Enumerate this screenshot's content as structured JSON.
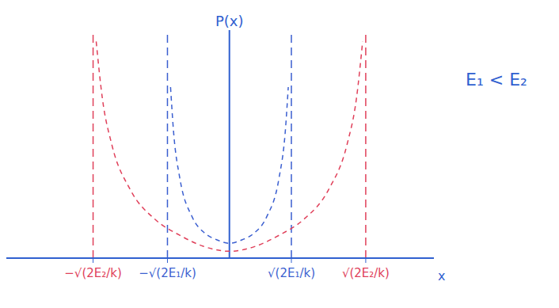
{
  "chart_data": {
    "type": "line",
    "y_label": "P(x)",
    "x_label": "x",
    "annotation": "E₁ < E₂",
    "tick_labels": "x",
    "xlim": [
      -3.6,
      3.3
    ],
    "ylim": [
      0,
      1
    ],
    "xticks": [
      {
        "value": -2.2,
        "label": "−√(2E₂/k)"
      },
      {
        "value": -1,
        "label": "−√(2E₁/k)"
      },
      {
        "value": 1,
        "label": "√(2E₁/k)"
      },
      {
        "value": 2.2,
        "label": "√(2E₂/k)"
      }
    ],
    "series": [
      {
        "color": "#3b5fd0",
        "line_style": "dashed",
        "asymptotes": [
          -1,
          1
        ],
        "x": [
          -0.95,
          -0.9,
          -0.8,
          -0.6,
          -0.4,
          -0.2,
          0,
          0.2,
          0.4,
          0.6,
          0.8,
          0.9,
          0.95
        ],
        "values": [
          0.75,
          0.55,
          0.35,
          0.18,
          0.11,
          0.08,
          0.065,
          0.08,
          0.11,
          0.18,
          0.35,
          0.55,
          0.75
        ]
      },
      {
        "color": "#e0405a",
        "line_style": "dashed",
        "asymptotes": [
          -2.2,
          2.2
        ],
        "x": [
          -2.15,
          -2.05,
          -1.9,
          -1.6,
          -1.2,
          -0.8,
          -0.4,
          0,
          0.4,
          0.8,
          1.2,
          1.6,
          1.9,
          2.05,
          2.15
        ],
        "values": [
          0.95,
          0.7,
          0.5,
          0.3,
          0.17,
          0.1,
          0.05,
          0.03,
          0.05,
          0.1,
          0.17,
          0.3,
          0.5,
          0.7,
          0.95
        ]
      }
    ]
  }
}
